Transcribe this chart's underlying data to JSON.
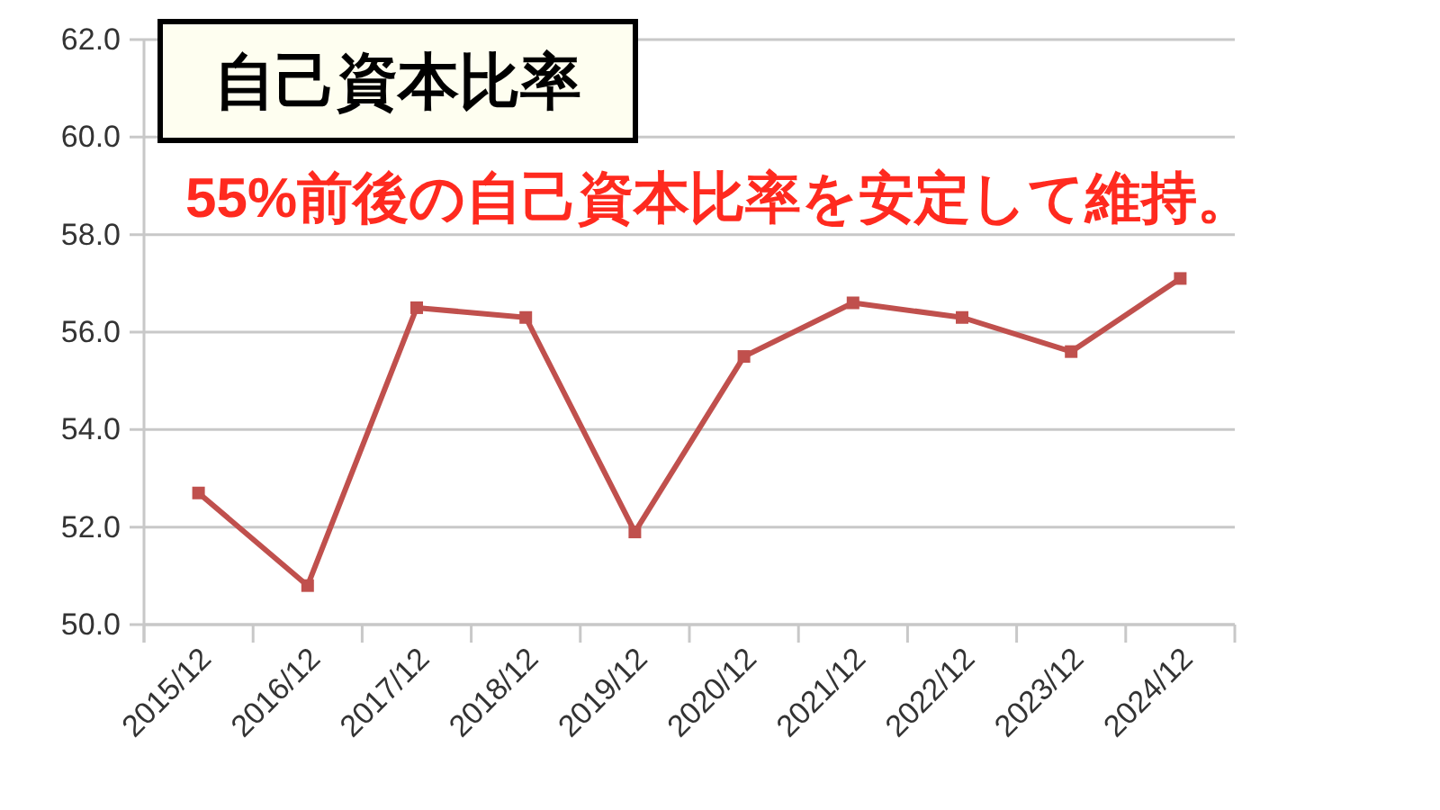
{
  "chart_data": {
    "type": "line",
    "title": "自己資本比率",
    "annotations": [
      "55%前後の自己資本比率を安定して維持。"
    ],
    "categories": [
      "2015/12",
      "2016/12",
      "2017/12",
      "2018/12",
      "2019/12",
      "2020/12",
      "2021/12",
      "2022/12",
      "2023/12",
      "2024/12"
    ],
    "series": [
      {
        "color": "#c0504d",
        "values": [
          52.7,
          50.8,
          56.5,
          56.3,
          51.9,
          55.5,
          56.6,
          56.3,
          55.6,
          57.1
        ]
      }
    ],
    "ylim": [
      50,
      62
    ],
    "yticks": [
      {
        "value": 50,
        "label": "50.0"
      },
      {
        "value": 52,
        "label": "52.0"
      },
      {
        "value": 54,
        "label": "54.0"
      },
      {
        "value": 56,
        "label": "56.0"
      },
      {
        "value": 58,
        "label": "58.0"
      },
      {
        "value": 60,
        "label": "60.0"
      },
      {
        "value": 62,
        "label": "62.0"
      }
    ],
    "grid": "y",
    "marker": "square",
    "line_style": "solid"
  }
}
